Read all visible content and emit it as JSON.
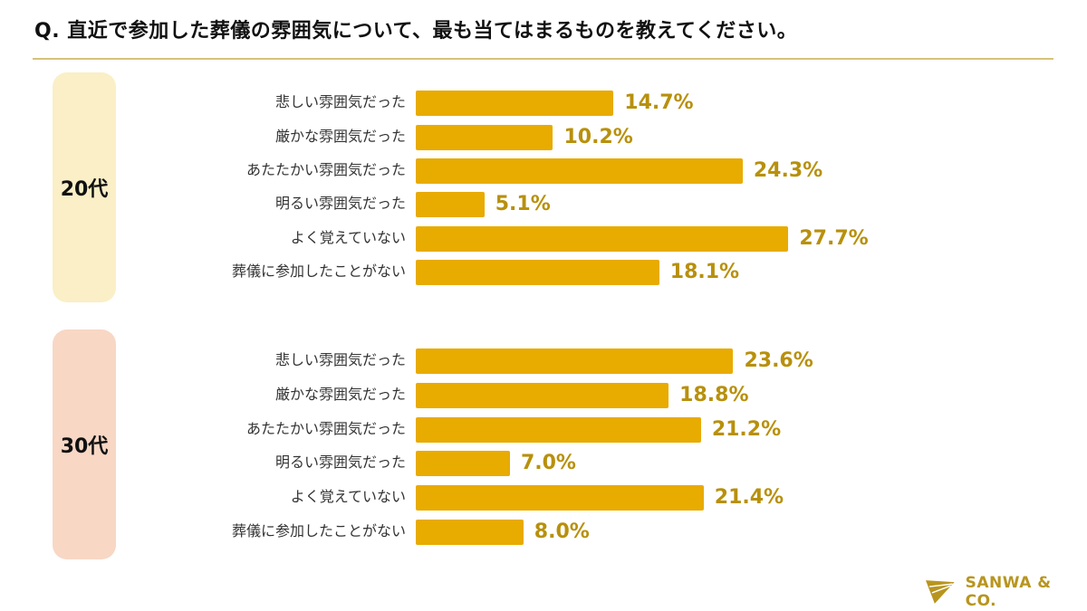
{
  "chart_data": {
    "type": "bar",
    "orientation": "horizontal",
    "title": "Q. 直近で参加した葬儀の雰囲気について、最も当てはまるものを教えてください。",
    "unit": "%",
    "categories": [
      "悲しい雰囲気だった",
      "厳かな雰囲気だった",
      "あたたかい雰囲気だった",
      "明るい雰囲気だった",
      "よく覚えていない",
      "葬儀に参加したことがない"
    ],
    "groups": [
      {
        "label": "20代",
        "values": [
          14.7,
          10.2,
          24.3,
          5.1,
          27.7,
          18.1
        ],
        "value_labels": [
          "14.7%",
          "10.2%",
          "24.3%",
          "5.1%",
          "27.7%",
          "18.1%"
        ]
      },
      {
        "label": "30代",
        "values": [
          23.6,
          18.8,
          21.2,
          7.0,
          21.4,
          8.0
        ],
        "value_labels": [
          "23.6%",
          "18.8%",
          "21.2%",
          "7.0%",
          "21.4%",
          "8.0%"
        ]
      }
    ],
    "grid": false,
    "legend": "none"
  },
  "colors": {
    "bar": "#e8ab00",
    "value_label": "#b8900c",
    "group_20": "#faefc6",
    "group_30": "#f8d7c5",
    "brand": "#b8951e"
  },
  "brand": {
    "name": "SANWA & CO."
  }
}
